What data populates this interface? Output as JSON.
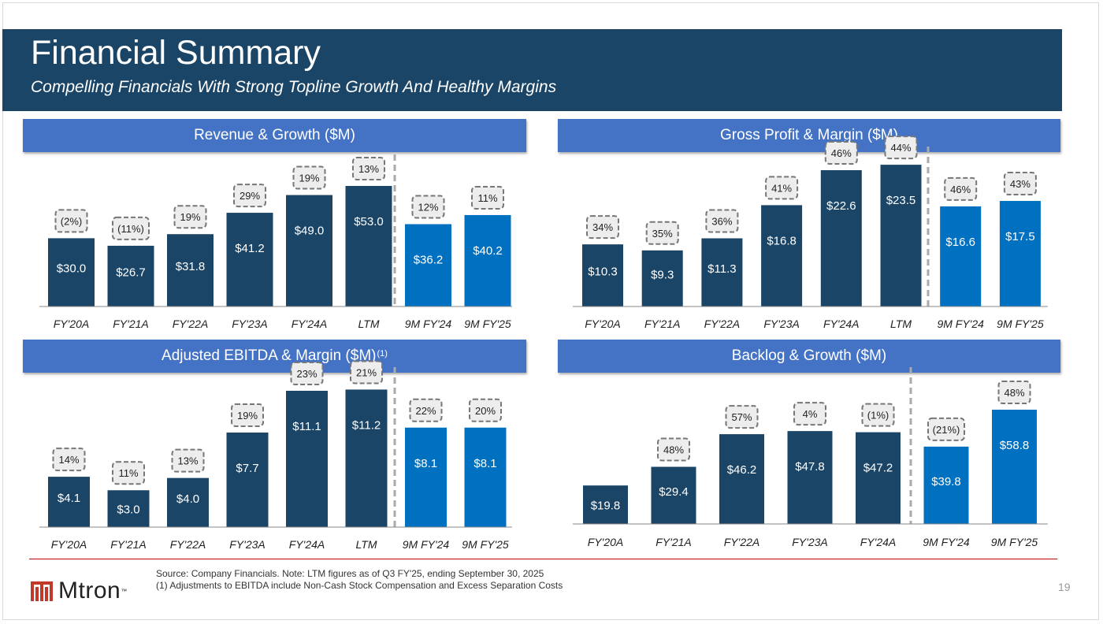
{
  "header": {
    "title": "Financial Summary",
    "subtitle": "Compelling Financials With Strong Topline Growth And Healthy Margins"
  },
  "colors": {
    "header_bg": "#1b4566",
    "panel_header": "#4472c4",
    "bar_dark": "#1b4566",
    "bar_light": "#0070c0",
    "divider": "#c00000"
  },
  "panels": {
    "revenue": {
      "label": "Revenue & Growth ($M)",
      "footnote": ""
    },
    "gross_profit": {
      "label": "Gross Profit & Margin ($M)",
      "footnote": ""
    },
    "ebitda": {
      "label": "Adjusted EBITDA & Margin ($M)",
      "footnote": "(1)"
    },
    "backlog": {
      "label": "Backlog & Growth ($M)",
      "footnote": ""
    }
  },
  "chart_data": [
    {
      "id": "revenue",
      "type": "bar",
      "title": "Revenue & Growth ($M)",
      "categories": [
        "FY'20A",
        "FY'21A",
        "FY'22A",
        "FY'23A",
        "FY'24A",
        "LTM",
        "9M FY'24",
        "9M FY'25"
      ],
      "values": [
        30.0,
        26.7,
        31.8,
        41.2,
        49.0,
        53.0,
        36.2,
        40.2
      ],
      "value_labels": [
        "$30.0",
        "$26.7",
        "$31.8",
        "$41.2",
        "$49.0",
        "$53.0",
        "$36.2",
        "$40.2"
      ],
      "annotations": [
        "(2%)",
        "(11%)",
        "19%",
        "29%",
        "19%",
        "13%",
        "12%",
        "11%"
      ],
      "highlight_from_index": 6,
      "ylim": [
        0,
        53.0
      ]
    },
    {
      "id": "gross_profit",
      "type": "bar",
      "title": "Gross Profit & Margin ($M)",
      "categories": [
        "FY'20A",
        "FY'21A",
        "FY'22A",
        "FY'23A",
        "FY'24A",
        "LTM",
        "9M FY'24",
        "9M FY'25"
      ],
      "values": [
        10.3,
        9.3,
        11.3,
        16.8,
        22.6,
        23.5,
        16.6,
        17.5
      ],
      "value_labels": [
        "$10.3",
        "$9.3",
        "$11.3",
        "$16.8",
        "$22.6",
        "$23.5",
        "$16.6",
        "$17.5"
      ],
      "annotations": [
        "34%",
        "35%",
        "36%",
        "41%",
        "46%",
        "44%",
        "46%",
        "43%"
      ],
      "highlight_from_index": 6,
      "ylim": [
        0,
        22.6
      ]
    },
    {
      "id": "ebitda",
      "type": "bar",
      "title": "Adjusted EBITDA & Margin ($M)",
      "categories": [
        "FY'20A",
        "FY'21A",
        "FY'22A",
        "FY'23A",
        "FY'24A",
        "LTM",
        "9M FY'24",
        "9M FY'25"
      ],
      "values": [
        4.1,
        3.0,
        4.0,
        7.7,
        11.1,
        11.2,
        8.1,
        8.1
      ],
      "value_labels": [
        "$4.1",
        "$3.0",
        "$4.0",
        "$7.7",
        "$11.1",
        "$11.2",
        "$8.1",
        "$8.1"
      ],
      "annotations": [
        "14%",
        "11%",
        "13%",
        "19%",
        "23%",
        "21%",
        "22%",
        "20%"
      ],
      "highlight_from_index": 6,
      "ylim": [
        0,
        11.1
      ]
    },
    {
      "id": "backlog",
      "type": "bar",
      "title": "Backlog & Growth ($M)",
      "categories": [
        "FY'20A",
        "FY'21A",
        "FY'22A",
        "FY'23A",
        "FY'24A",
        "9M FY'24",
        "9M FY'25"
      ],
      "values": [
        19.8,
        29.4,
        46.2,
        47.8,
        47.2,
        39.8,
        58.8
      ],
      "value_labels": [
        "$19.8",
        "$29.4",
        "$46.2",
        "$47.8",
        "$47.2",
        "$39.8",
        "$58.8"
      ],
      "annotations": [
        "",
        "48%",
        "57%",
        "4%",
        "(1%)",
        "(21%)",
        "48%"
      ],
      "highlight_from_index": 5,
      "ylim": [
        0,
        58.8
      ]
    }
  ],
  "footer": {
    "brand": "Mtron",
    "trademark": "™",
    "source": "Source: Company Financials. Note: LTM figures as of Q3 FY'25, ending September 30, 2025",
    "footnote_1": "(1) Adjustments to EBITDA include Non-Cash Stock Compensation and Excess Separation Costs",
    "page_number": "19"
  }
}
